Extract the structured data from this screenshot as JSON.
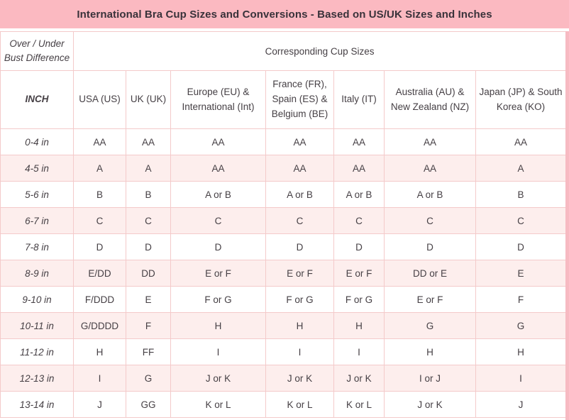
{
  "title": "International Bra Cup Sizes and Conversions - Based on US/UK Sizes and Inches",
  "table": {
    "corner_header": "Over / Under Bust Difference",
    "group_header": "Corresponding Cup Sizes",
    "columns": [
      "INCH",
      "USA (US)",
      "UK (UK)",
      "Europe (EU) & International (Int)",
      "France (FR), Spain (ES) & Belgium (BE)",
      "Italy (IT)",
      "Australia (AU) & New Zealand (NZ)",
      "Japan (JP) & South Korea (KO)"
    ],
    "rows": [
      [
        "0-4 in",
        "AA",
        "AA",
        "AA",
        "AA",
        "AA",
        "AA",
        "AA"
      ],
      [
        "4-5 in",
        "A",
        "A",
        "AA",
        "AA",
        "AA",
        "AA",
        "A"
      ],
      [
        "5-6 in",
        "B",
        "B",
        "A or B",
        "A or B",
        "A or B",
        "A or B",
        "B"
      ],
      [
        "6-7 in",
        "C",
        "C",
        "C",
        "C",
        "C",
        "C",
        "C"
      ],
      [
        "7-8 in",
        "D",
        "D",
        "D",
        "D",
        "D",
        "D",
        "D"
      ],
      [
        "8-9 in",
        "E/DD",
        "DD",
        "E or F",
        "E or F",
        "E or F",
        "DD or E",
        "E"
      ],
      [
        "9-10 in",
        "F/DDD",
        "E",
        "F or G",
        "F or G",
        "F or G",
        "E or F",
        "F"
      ],
      [
        "10-11 in",
        "G/DDDD",
        "F",
        "H",
        "H",
        "H",
        "G",
        "G"
      ],
      [
        "11-12 in",
        "H",
        "FF",
        "I",
        "I",
        "I",
        "H",
        "H"
      ],
      [
        "12-13 in",
        "I",
        "G",
        "J or K",
        "J or K",
        "J or K",
        "I or J",
        "I"
      ],
      [
        "13-14 in",
        "J",
        "GG",
        "K or L",
        "K or L",
        "K or L",
        "J or K",
        "J"
      ]
    ]
  },
  "colors": {
    "title_bg": "#fbb9c1",
    "alt_row": "#fdeeed",
    "border": "#f4caca",
    "text": "#464045",
    "title_text": "#39323a",
    "strip": "#f7bac2"
  }
}
